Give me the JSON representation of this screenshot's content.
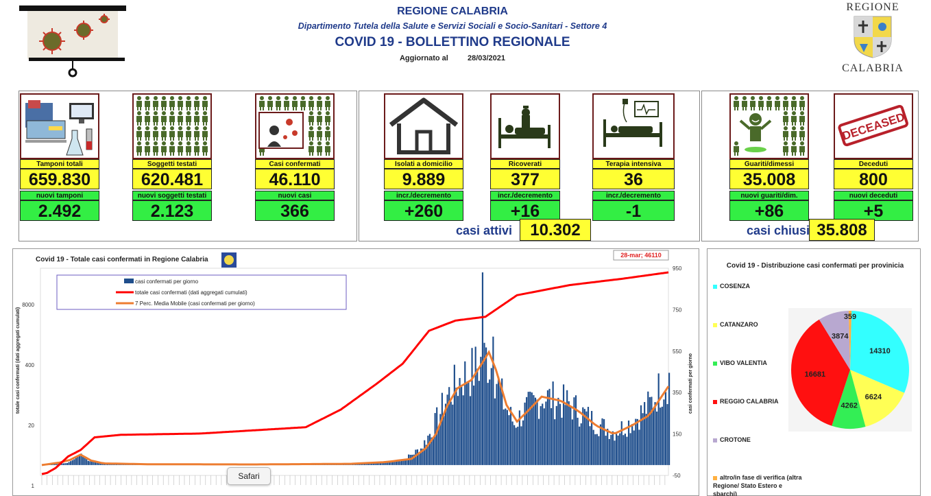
{
  "header": {
    "title": "REGIONE CALABRIA",
    "department": "Dipartimento Tutela della Salute e Servizi Sociali e Socio-Sanitari - Settore 4",
    "bulletin": "COVID 19 - BOLLETTINO REGIONALE",
    "updated_label": "Aggiornato al",
    "updated_date": "28/03/2021"
  },
  "logo": {
    "top": "REGIONE",
    "bottom": "CALABRIA"
  },
  "kpis": {
    "tamponi": {
      "label": "Tamponi totali",
      "value": "659.830",
      "sub_label": "nuovi tamponi",
      "sub_value": "2.492",
      "icon": "lab-equipment-icon"
    },
    "soggetti": {
      "label": "Soggetti testati",
      "value": "620.481",
      "sub_label": "nuovi soggetti testati",
      "sub_value": "2.123",
      "icon": "people-grid-icon"
    },
    "casi": {
      "label": "Casi confermati",
      "value": "46.110",
      "sub_label": "nuovi casi",
      "sub_value": "366",
      "icon": "virus-person-icon"
    },
    "isolati": {
      "label": "Isolati a domicilio",
      "value": "9.889",
      "sub_label": "incr./decremento",
      "sub_value": "+260",
      "icon": "house-icon"
    },
    "ricoverati": {
      "label": "Ricoverati",
      "value": "377",
      "sub_label": "incr./decremento",
      "sub_value": "+16",
      "icon": "hospital-bed-icon"
    },
    "terapia": {
      "label": "Terapia intensiva",
      "value": "36",
      "sub_label": "incr./decremento",
      "sub_value": "-1",
      "icon": "icu-bed-icon"
    },
    "guariti": {
      "label": "Guariti/dimessi",
      "value": "35.008",
      "sub_label": "nuovi guariti/dim.",
      "sub_value": "+86",
      "icon": "recovered-person-icon"
    },
    "deceduti": {
      "label": "Deceduti",
      "value": "800",
      "sub_label": "nuovi deceduti",
      "sub_value": "+5",
      "icon": "deceased-stamp-icon",
      "stamp": "DECEASED"
    }
  },
  "summary": {
    "attivi_label": "casi attivi",
    "attivi_value": "10.302",
    "chiusi_label": "casi chiusi",
    "chiusi_value": "35.808"
  },
  "chart_data": [
    {
      "type": "line",
      "title": "Covid 19 - Totale casi confermati in Regione Calabria",
      "ylabel_left": "totale casi confermati (dati aggregati cumulati)",
      "ylabel_right": "casi confermati per giorno",
      "left_ticks": [
        "8000",
        "400",
        "20",
        "1"
      ],
      "right_ticks": [
        "950",
        "750",
        "550",
        "350",
        "150",
        "-50"
      ],
      "annotation": "28-mar; 46110",
      "legend": [
        "casi confermati per giorno",
        "totale casi confermati (dati aggregati cumulati)",
        "7 Perc. Media Mobile (casi confermati per giorno)"
      ],
      "colors": {
        "bars": "#1f4e8c",
        "cumulative": "#ff0000",
        "moving_average": "#ed7d31"
      },
      "daily_profile": [
        [
          0,
          0
        ],
        [
          8,
          5
        ],
        [
          14,
          10
        ],
        [
          18,
          28
        ],
        [
          22,
          55
        ],
        [
          26,
          20
        ],
        [
          32,
          10
        ],
        [
          45,
          4
        ],
        [
          80,
          2
        ],
        [
          120,
          3
        ],
        [
          150,
          5
        ],
        [
          185,
          10
        ],
        [
          205,
          25
        ],
        [
          215,
          80
        ],
        [
          222,
          180
        ],
        [
          230,
          330
        ],
        [
          238,
          420
        ],
        [
          245,
          455
        ],
        [
          252,
          520
        ],
        [
          256,
          470
        ],
        [
          262,
          300
        ],
        [
          268,
          200
        ],
        [
          275,
          270
        ],
        [
          285,
          330
        ],
        [
          300,
          290
        ],
        [
          315,
          200
        ],
        [
          325,
          160
        ],
        [
          335,
          210
        ],
        [
          345,
          290
        ],
        [
          350,
          360
        ],
        [
          356,
          420
        ]
      ],
      "cumulative_profile": [
        [
          0,
          1
        ],
        [
          3,
          2
        ],
        [
          8,
          6
        ],
        [
          15,
          15
        ],
        [
          22,
          20
        ],
        [
          30,
          30
        ],
        [
          45,
          32
        ],
        [
          90,
          33
        ],
        [
          150,
          38
        ],
        [
          170,
          52
        ],
        [
          190,
          72
        ],
        [
          205,
          88
        ],
        [
          220,
          114
        ],
        [
          235,
          122
        ],
        [
          252,
          125
        ],
        [
          270,
          142
        ],
        [
          300,
          150
        ],
        [
          330,
          155
        ],
        [
          356,
          160
        ]
      ],
      "moving_average_profile": [
        [
          0,
          0
        ],
        [
          10,
          12
        ],
        [
          16,
          25
        ],
        [
          22,
          50
        ],
        [
          28,
          22
        ],
        [
          35,
          8
        ],
        [
          60,
          4
        ],
        [
          120,
          3
        ],
        [
          175,
          6
        ],
        [
          195,
          14
        ],
        [
          210,
          30
        ],
        [
          218,
          80
        ],
        [
          224,
          150
        ],
        [
          230,
          280
        ],
        [
          236,
          370
        ],
        [
          244,
          410
        ],
        [
          250,
          490
        ],
        [
          254,
          545
        ],
        [
          258,
          460
        ],
        [
          264,
          290
        ],
        [
          270,
          210
        ],
        [
          276,
          260
        ],
        [
          284,
          330
        ],
        [
          295,
          310
        ],
        [
          305,
          260
        ],
        [
          315,
          190
        ],
        [
          325,
          150
        ],
        [
          335,
          190
        ],
        [
          345,
          240
        ],
        [
          356,
          380
        ]
      ]
    },
    {
      "type": "pie",
      "title": "Covid 19 - Distribuzione casi confermati per provinicia",
      "labels": [
        "COSENZA",
        "CATANZARO",
        "VIBO VALENTIA",
        "REGGIO CALABRIA",
        "CROTONE",
        "altro/in fase di verifica (altra Regione/ Stato Estero e sbarchi)"
      ],
      "values": [
        14310,
        6624,
        4262,
        16681,
        3874,
        359
      ],
      "colors": [
        "#33ffff",
        "#ffff55",
        "#33ee55",
        "#ff1010",
        "#b8a8d0",
        "#ffb040"
      ]
    }
  ],
  "ui": {
    "tooltip": "Safari"
  }
}
